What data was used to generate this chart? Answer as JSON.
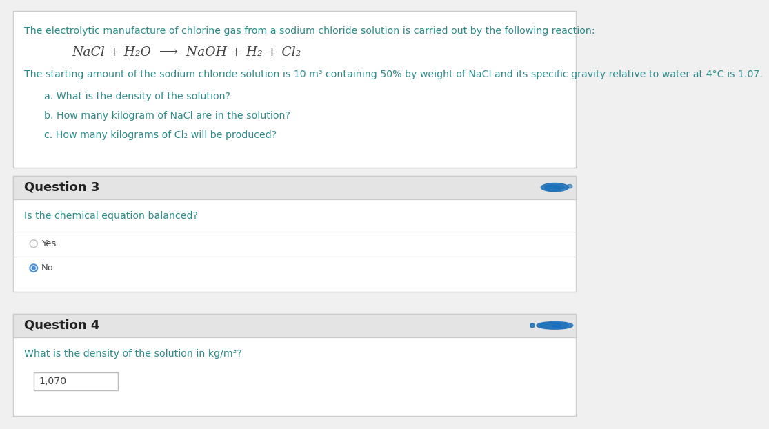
{
  "bg_color": "#ffffff",
  "outer_bg": "#f0f0f0",
  "top_box_border": "#cccccc",
  "question_header_bg": "#e4e4e4",
  "question_header_text_color": "#222222",
  "teal_text_color": "#2e8b8b",
  "dark_text_color": "#444444",
  "radio_selected_color": "#4a90d9",
  "radio_unselected_color": "#bbbbbb",
  "input_border_color": "#bbbbbb",
  "input_bg_color": "#ffffff",
  "line_separator_color": "#e0e0e0",
  "intro_text": "The electrolytic manufacture of chlorine gas from a sodium chloride solution is carried out by the following reaction:",
  "equation_text": "NaCl + H₂O  ⟶  NaOH + H₂ + Cl₂",
  "starting_text": "The starting amount of the sodium chloride solution is 10 m³ containing 50% by weight of NaCl and its specific gravity relative to water at 4°C is 1.07.",
  "q_a": "a. What is the density of the solution?",
  "q_b": "b. How many kilogram of NaCl are in the solution?",
  "q_c": "c. How many kilograms of Cl₂ will be produced?",
  "q3_title": "Question 3",
  "q3_text": "Is the chemical equation balanced?",
  "q3_yes": "Yes",
  "q3_no": "No",
  "q4_title": "Question 4",
  "q4_text": "What is the density of the solution in kg/m³?",
  "q4_answer": "1,070",
  "icon_color_q3": "#1a6fba",
  "icon_color_q4": "#1a6fba"
}
